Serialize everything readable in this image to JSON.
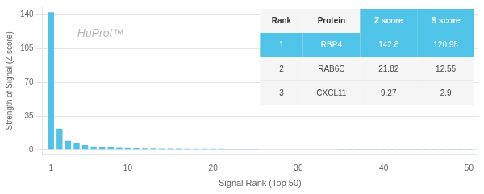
{
  "chart_data": {
    "type": "bar",
    "title": "HuProt™",
    "x_label": "Signal Rank (Top 50)",
    "y_label": "Strength of Signal (Z score)",
    "x": [
      1,
      2,
      3,
      4,
      5,
      6,
      7,
      8,
      9,
      10,
      11,
      12,
      13,
      14,
      15,
      16,
      17,
      18,
      19,
      20,
      21,
      22,
      23,
      24,
      25,
      26,
      27,
      28,
      29,
      30,
      31,
      32,
      33,
      34,
      35,
      36,
      37,
      38,
      39,
      40,
      41,
      42,
      43,
      44,
      45,
      46,
      47,
      48,
      49,
      50
    ],
    "values": [
      142.8,
      21.82,
      9.27,
      6.5,
      4.8,
      3.5,
      2.8,
      2.3,
      2.0,
      1.8,
      1.6,
      1.4,
      1.3,
      1.2,
      1.1,
      1.05,
      1.0,
      0.95,
      0.9,
      0.85,
      0.8,
      0.75,
      0.7,
      0.65,
      0.6,
      0.58,
      0.55,
      0.52,
      0.5,
      0.48,
      0.45,
      0.43,
      0.41,
      0.39,
      0.37,
      0.35,
      0.33,
      0.31,
      0.3,
      0.28,
      0.27,
      0.26,
      0.25,
      0.24,
      0.23,
      0.22,
      0.21,
      0.2,
      0.19,
      0.18
    ],
    "color": "#4fc3e8",
    "xlim": [
      0,
      51
    ],
    "xticks": [
      1,
      10,
      20,
      30,
      40,
      50
    ],
    "ylim": [
      -5,
      148
    ],
    "yticks": [
      0,
      35,
      70,
      105,
      140
    ],
    "grid": true,
    "table": {
      "headers": [
        "Rank",
        "Protein",
        "Z score",
        "S score"
      ],
      "rows": [
        [
          "1",
          "RBP4",
          "142.8",
          "120.98"
        ],
        [
          "2",
          "RAB6C",
          "21.82",
          "12.55"
        ],
        [
          "3",
          "CXCL11",
          "9.27",
          "2.9"
        ]
      ]
    }
  }
}
